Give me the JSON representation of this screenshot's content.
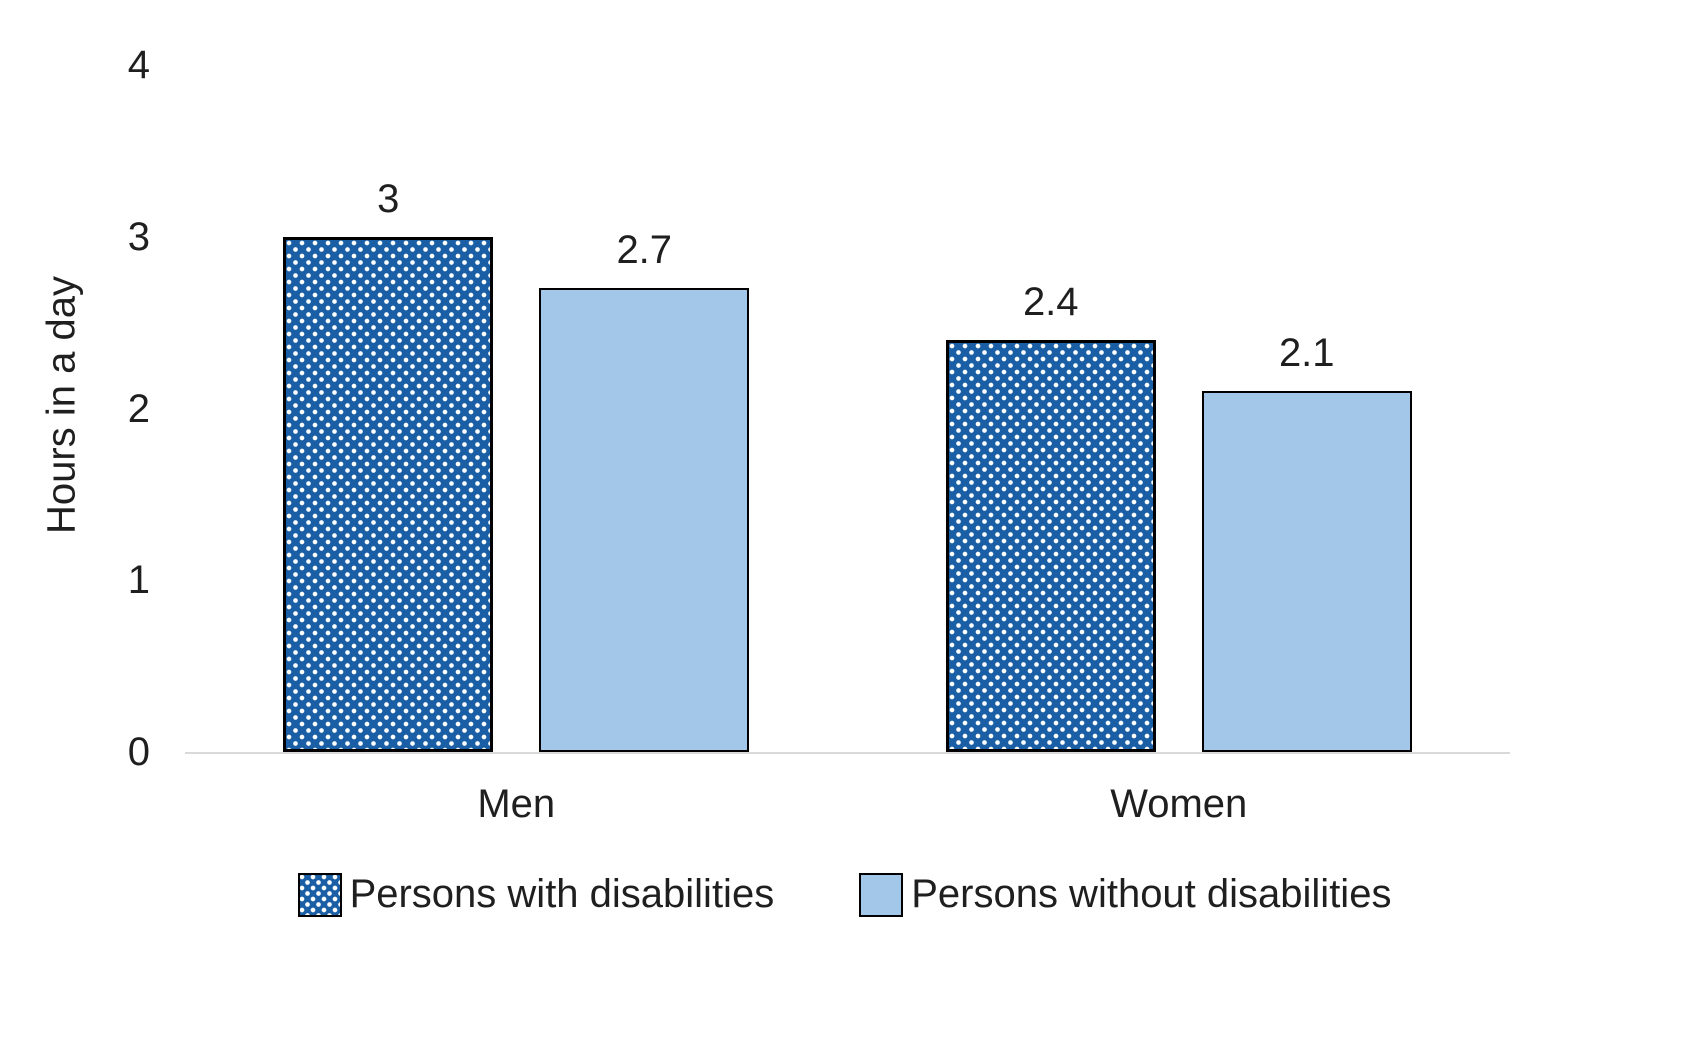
{
  "chart_data": {
    "type": "bar",
    "categories": [
      "Men",
      "Women"
    ],
    "series": [
      {
        "name": "Persons with disabilities",
        "values": [
          3,
          2.4
        ],
        "color": "#1a5fa5",
        "pattern": "dots"
      },
      {
        "name": "Persons without disabilities",
        "values": [
          2.7,
          2.1
        ],
        "color": "#a3c7e8",
        "pattern": "solid"
      }
    ],
    "data_labels": [
      [
        "3",
        "2.7"
      ],
      [
        "2.4",
        "2.1"
      ]
    ],
    "title": "",
    "xlabel": "",
    "ylabel": "Hours in a day",
    "ylim": [
      0,
      4
    ],
    "yticks": [
      0,
      1,
      2,
      3,
      4
    ],
    "grid": false,
    "legend_position": "bottom"
  }
}
